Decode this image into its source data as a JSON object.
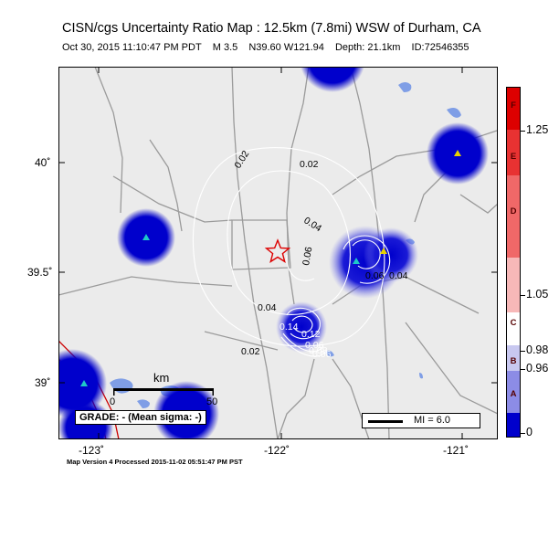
{
  "title": "CISN/cgs Uncertainty Ratio Map : 12.5km (7.8mi) WSW of Durham, CA",
  "event": {
    "datetime": "Oct 30, 2015 11:10:47 PM PDT",
    "magnitude": "M 3.5",
    "location": "N39.60 W121.94",
    "depth": "Depth: 21.1km",
    "id": "ID:72546355"
  },
  "axes": {
    "lon_labels": [
      "-123˚",
      "-122˚",
      "-121˚"
    ],
    "lat_labels": [
      "40˚",
      "39.5˚",
      "39˚"
    ]
  },
  "contour_labels": [
    "0.02",
    "0.02",
    "0.04",
    "0.06",
    "0.04",
    "0.02",
    "0.14",
    "0.12",
    "0.06",
    "0.08",
    "0.06",
    "0.04",
    "0.06"
  ],
  "scale_bar": {
    "unit": "km",
    "start": "0",
    "end": "50"
  },
  "grade_text": "GRADE: - (Mean sigma: -)",
  "legend": {
    "mi_label": "MI = 6.0"
  },
  "colorbar": {
    "letters": [
      "F",
      "E",
      "D",
      "C",
      "B",
      "A"
    ],
    "ticks": [
      "1.25",
      "1.05",
      "0.98",
      "0.96",
      "0"
    ]
  },
  "footer": "Map Version 4 Processed 2015-11-02 05:51:47 PM PST",
  "colors": {
    "uncertainty_low": "#0000cc",
    "uncertainty_high": "#dd0000",
    "epicenter": "#dd0000",
    "water": "#7f9ee6"
  }
}
